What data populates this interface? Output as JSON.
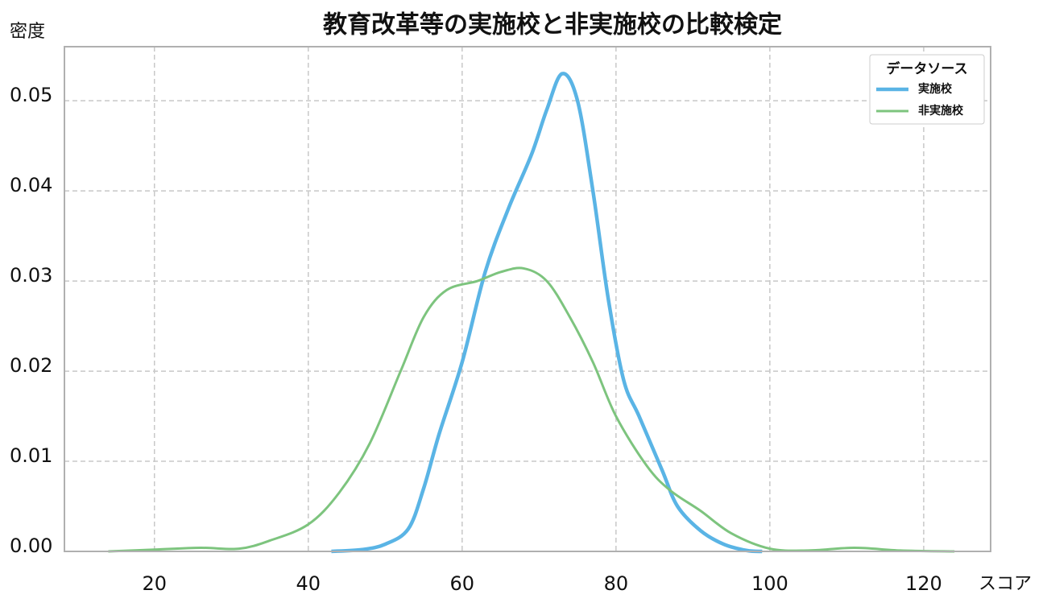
{
  "chart_data": {
    "type": "line",
    "title": "教育改革等の実施校と非実施校の比較検定",
    "x_label": "スコア",
    "y_label": "密度",
    "legend_title": "データソース",
    "legend": "upper right",
    "grid": true,
    "xlim": [
      8.3,
      128.7
    ],
    "xticks": [
      20,
      40,
      60,
      80,
      100,
      120
    ],
    "ylim": [
      0,
      0.056
    ],
    "yticks": [
      {
        "value": 0,
        "label": "0.00"
      },
      0.01,
      0.02,
      0.03,
      0.04,
      0.05
    ],
    "series": [
      {
        "name": "実施校",
        "color": "#5ab4e5",
        "x": [
          43,
          47,
          50,
          53,
          55,
          57,
          60,
          63,
          66,
          69,
          71,
          73,
          75,
          77,
          79,
          81,
          83,
          86,
          88,
          91,
          94,
          97,
          99
        ],
        "values": [
          0,
          0.0002,
          0.0008,
          0.0025,
          0.007,
          0.013,
          0.021,
          0.031,
          0.038,
          0.044,
          0.049,
          0.053,
          0.05,
          0.04,
          0.028,
          0.019,
          0.015,
          0.009,
          0.005,
          0.0023,
          0.0008,
          0.0001,
          0
        ]
      },
      {
        "name": "非実施校",
        "color": "#7dc47e",
        "x": [
          14,
          20,
          26,
          31,
          35,
          40,
          44,
          48,
          52,
          55,
          58,
          62,
          65,
          68,
          71,
          74,
          77,
          80,
          84,
          87,
          91,
          95,
          100,
          105,
          111,
          117,
          124
        ],
        "values": [
          0,
          0.0002,
          0.0004,
          0.0003,
          0.0012,
          0.003,
          0.0065,
          0.012,
          0.02,
          0.026,
          0.029,
          0.03,
          0.031,
          0.0314,
          0.03,
          0.026,
          0.021,
          0.015,
          0.0095,
          0.0068,
          0.0045,
          0.002,
          0.0003,
          0.0001,
          0.0004,
          0.0001,
          0
        ]
      }
    ]
  }
}
